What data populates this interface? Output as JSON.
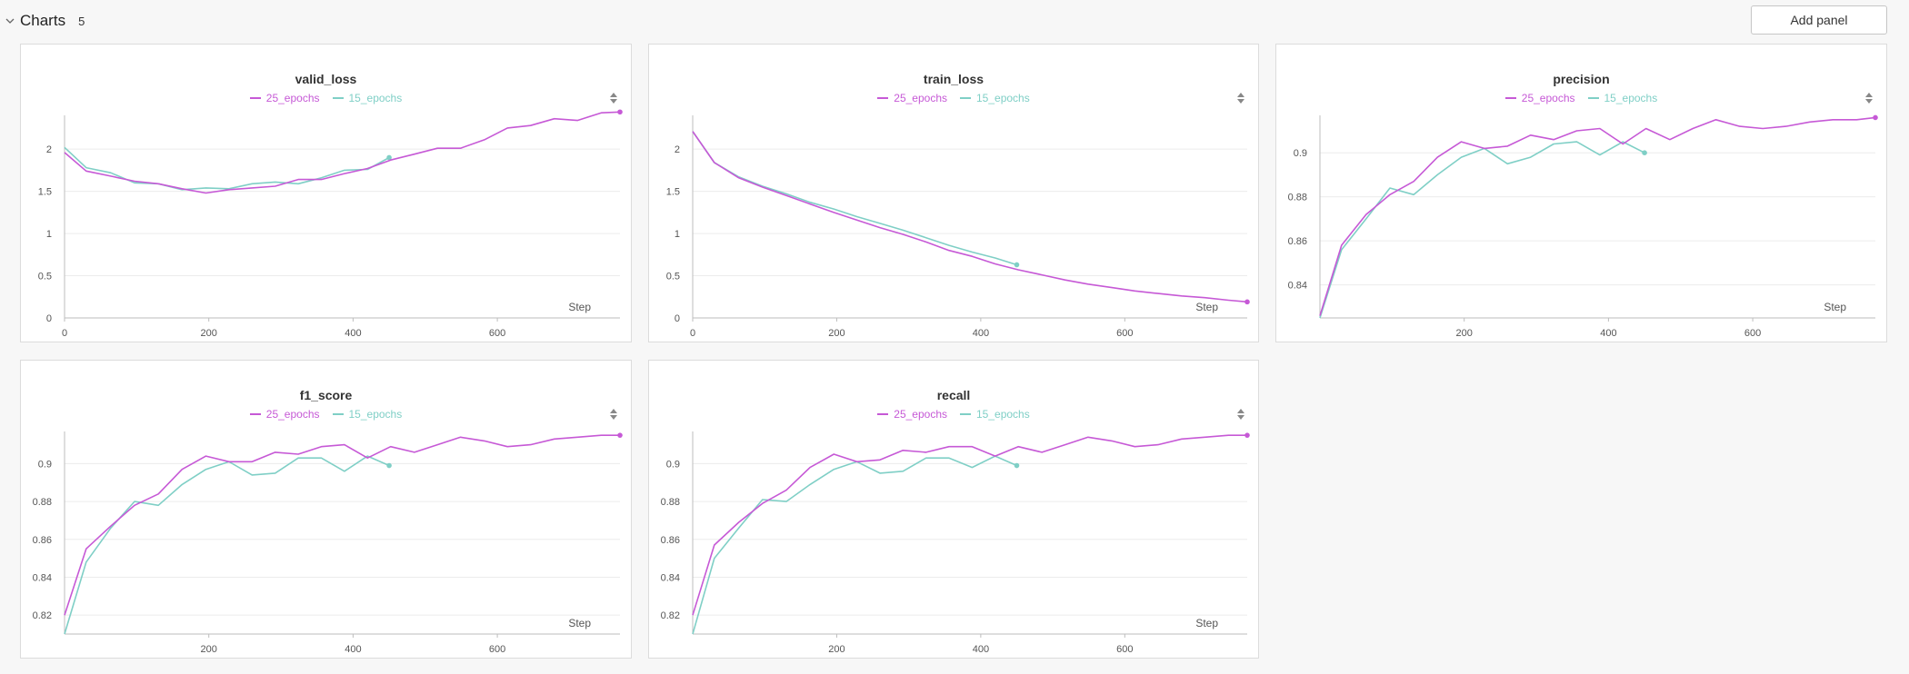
{
  "section": {
    "title": "Charts",
    "count": "5",
    "add_panel_label": "Add panel"
  },
  "colors": {
    "series_a": "#c659d6",
    "series_b": "#7fcfc6",
    "grid": "#ececec",
    "axis": "#bdbdbd",
    "text": "#555555"
  },
  "chart_data": [
    {
      "type": "line",
      "title": "valid_loss",
      "xlabel": "Step",
      "ylabel": "",
      "xlim": [
        0,
        770
      ],
      "ylim": [
        0,
        2.4
      ],
      "xticks": [
        0,
        200,
        400,
        600
      ],
      "yticks": [
        0,
        0.5,
        1,
        1.5,
        2
      ],
      "series": [
        {
          "name": "25_epochs",
          "x": [
            0,
            30,
            64,
            97,
            130,
            163,
            196,
            228,
            260,
            292,
            324,
            356,
            388,
            420,
            452,
            485,
            517,
            549,
            582,
            614,
            646,
            679,
            711,
            744,
            770
          ],
          "y": [
            1.96,
            1.74,
            1.68,
            1.62,
            1.59,
            1.53,
            1.48,
            1.52,
            1.54,
            1.56,
            1.64,
            1.64,
            1.71,
            1.77,
            1.87,
            1.94,
            2.01,
            2.01,
            2.11,
            2.25,
            2.28,
            2.36,
            2.34,
            2.43,
            2.44
          ]
        },
        {
          "name": "15_epochs",
          "x": [
            0,
            30,
            64,
            97,
            130,
            163,
            196,
            228,
            260,
            292,
            324,
            356,
            388,
            420,
            450
          ],
          "y": [
            2.02,
            1.78,
            1.72,
            1.6,
            1.59,
            1.52,
            1.54,
            1.53,
            1.59,
            1.61,
            1.59,
            1.66,
            1.75,
            1.76,
            1.9
          ]
        }
      ]
    },
    {
      "type": "line",
      "title": "train_loss",
      "xlabel": "Step",
      "ylabel": "",
      "xlim": [
        0,
        770
      ],
      "ylim": [
        0,
        2.4
      ],
      "xticks": [
        0,
        200,
        400,
        600
      ],
      "yticks": [
        0,
        0.5,
        1,
        1.5,
        2
      ],
      "series": [
        {
          "name": "25_epochs",
          "x": [
            0,
            30,
            64,
            97,
            130,
            163,
            196,
            228,
            260,
            292,
            324,
            356,
            388,
            420,
            452,
            485,
            517,
            549,
            582,
            614,
            646,
            679,
            711,
            744,
            770
          ],
          "y": [
            2.21,
            1.84,
            1.66,
            1.55,
            1.45,
            1.35,
            1.25,
            1.16,
            1.07,
            0.99,
            0.9,
            0.8,
            0.73,
            0.64,
            0.57,
            0.51,
            0.45,
            0.4,
            0.36,
            0.32,
            0.29,
            0.26,
            0.24,
            0.21,
            0.19
          ]
        },
        {
          "name": "15_epochs",
          "x": [
            0,
            30,
            64,
            97,
            130,
            163,
            196,
            228,
            260,
            292,
            324,
            356,
            388,
            420,
            450
          ],
          "y": [
            2.21,
            1.84,
            1.67,
            1.56,
            1.47,
            1.37,
            1.29,
            1.2,
            1.12,
            1.04,
            0.95,
            0.86,
            0.78,
            0.71,
            0.63
          ]
        }
      ]
    },
    {
      "type": "line",
      "title": "precision",
      "xlabel": "Step",
      "ylabel": "",
      "xlim": [
        0,
        770
      ],
      "ylim": [
        0.825,
        0.917
      ],
      "xticks": [
        200,
        400,
        600
      ],
      "yticks": [
        0.84,
        0.86,
        0.88,
        0.9
      ],
      "series": [
        {
          "name": "25_epochs",
          "x": [
            0,
            30,
            64,
            97,
            130,
            163,
            196,
            228,
            260,
            292,
            324,
            356,
            388,
            420,
            452,
            485,
            517,
            549,
            582,
            614,
            646,
            679,
            711,
            744,
            770
          ],
          "y": [
            0.826,
            0.858,
            0.872,
            0.881,
            0.887,
            0.898,
            0.905,
            0.902,
            0.903,
            0.908,
            0.906,
            0.91,
            0.911,
            0.904,
            0.911,
            0.906,
            0.911,
            0.915,
            0.912,
            0.911,
            0.912,
            0.914,
            0.915,
            0.915,
            0.916
          ]
        },
        {
          "name": "15_epochs",
          "x": [
            0,
            30,
            64,
            97,
            130,
            163,
            196,
            228,
            260,
            292,
            324,
            356,
            388,
            420,
            450
          ],
          "y": [
            0.825,
            0.856,
            0.87,
            0.884,
            0.881,
            0.89,
            0.898,
            0.902,
            0.895,
            0.898,
            0.904,
            0.905,
            0.899,
            0.905,
            0.9
          ]
        }
      ]
    },
    {
      "type": "line",
      "title": "f1_score",
      "xlabel": "Step",
      "ylabel": "",
      "xlim": [
        0,
        770
      ],
      "ylim": [
        0.81,
        0.917
      ],
      "xticks": [
        200,
        400,
        600
      ],
      "yticks": [
        0.82,
        0.84,
        0.86,
        0.88,
        0.9
      ],
      "series": [
        {
          "name": "25_epochs",
          "x": [
            0,
            30,
            64,
            97,
            130,
            163,
            196,
            228,
            260,
            292,
            324,
            356,
            388,
            420,
            452,
            485,
            517,
            549,
            582,
            614,
            646,
            679,
            711,
            744,
            770
          ],
          "y": [
            0.82,
            0.855,
            0.867,
            0.878,
            0.884,
            0.897,
            0.904,
            0.901,
            0.901,
            0.906,
            0.905,
            0.909,
            0.91,
            0.903,
            0.909,
            0.906,
            0.91,
            0.914,
            0.912,
            0.909,
            0.91,
            0.913,
            0.914,
            0.915,
            0.915
          ]
        },
        {
          "name": "15_epochs",
          "x": [
            0,
            30,
            64,
            97,
            130,
            163,
            196,
            228,
            260,
            292,
            324,
            356,
            388,
            420,
            450
          ],
          "y": [
            0.81,
            0.848,
            0.866,
            0.88,
            0.878,
            0.889,
            0.897,
            0.901,
            0.894,
            0.895,
            0.903,
            0.903,
            0.896,
            0.904,
            0.899
          ]
        }
      ]
    },
    {
      "type": "line",
      "title": "recall",
      "xlabel": "Step",
      "ylabel": "",
      "xlim": [
        0,
        770
      ],
      "ylim": [
        0.81,
        0.917
      ],
      "xticks": [
        200,
        400,
        600
      ],
      "yticks": [
        0.82,
        0.84,
        0.86,
        0.88,
        0.9
      ],
      "series": [
        {
          "name": "25_epochs",
          "x": [
            0,
            30,
            64,
            97,
            130,
            163,
            196,
            228,
            260,
            292,
            324,
            356,
            388,
            420,
            452,
            485,
            517,
            549,
            582,
            614,
            646,
            679,
            711,
            744,
            770
          ],
          "y": [
            0.82,
            0.857,
            0.869,
            0.879,
            0.886,
            0.898,
            0.905,
            0.901,
            0.902,
            0.907,
            0.906,
            0.909,
            0.909,
            0.904,
            0.909,
            0.906,
            0.91,
            0.914,
            0.912,
            0.909,
            0.91,
            0.913,
            0.914,
            0.915,
            0.915
          ]
        },
        {
          "name": "15_epochs",
          "x": [
            0,
            30,
            64,
            97,
            130,
            163,
            196,
            228,
            260,
            292,
            324,
            356,
            388,
            420,
            450
          ],
          "y": [
            0.81,
            0.85,
            0.866,
            0.881,
            0.88,
            0.889,
            0.897,
            0.901,
            0.895,
            0.896,
            0.903,
            0.903,
            0.898,
            0.904,
            0.899
          ]
        }
      ]
    }
  ]
}
